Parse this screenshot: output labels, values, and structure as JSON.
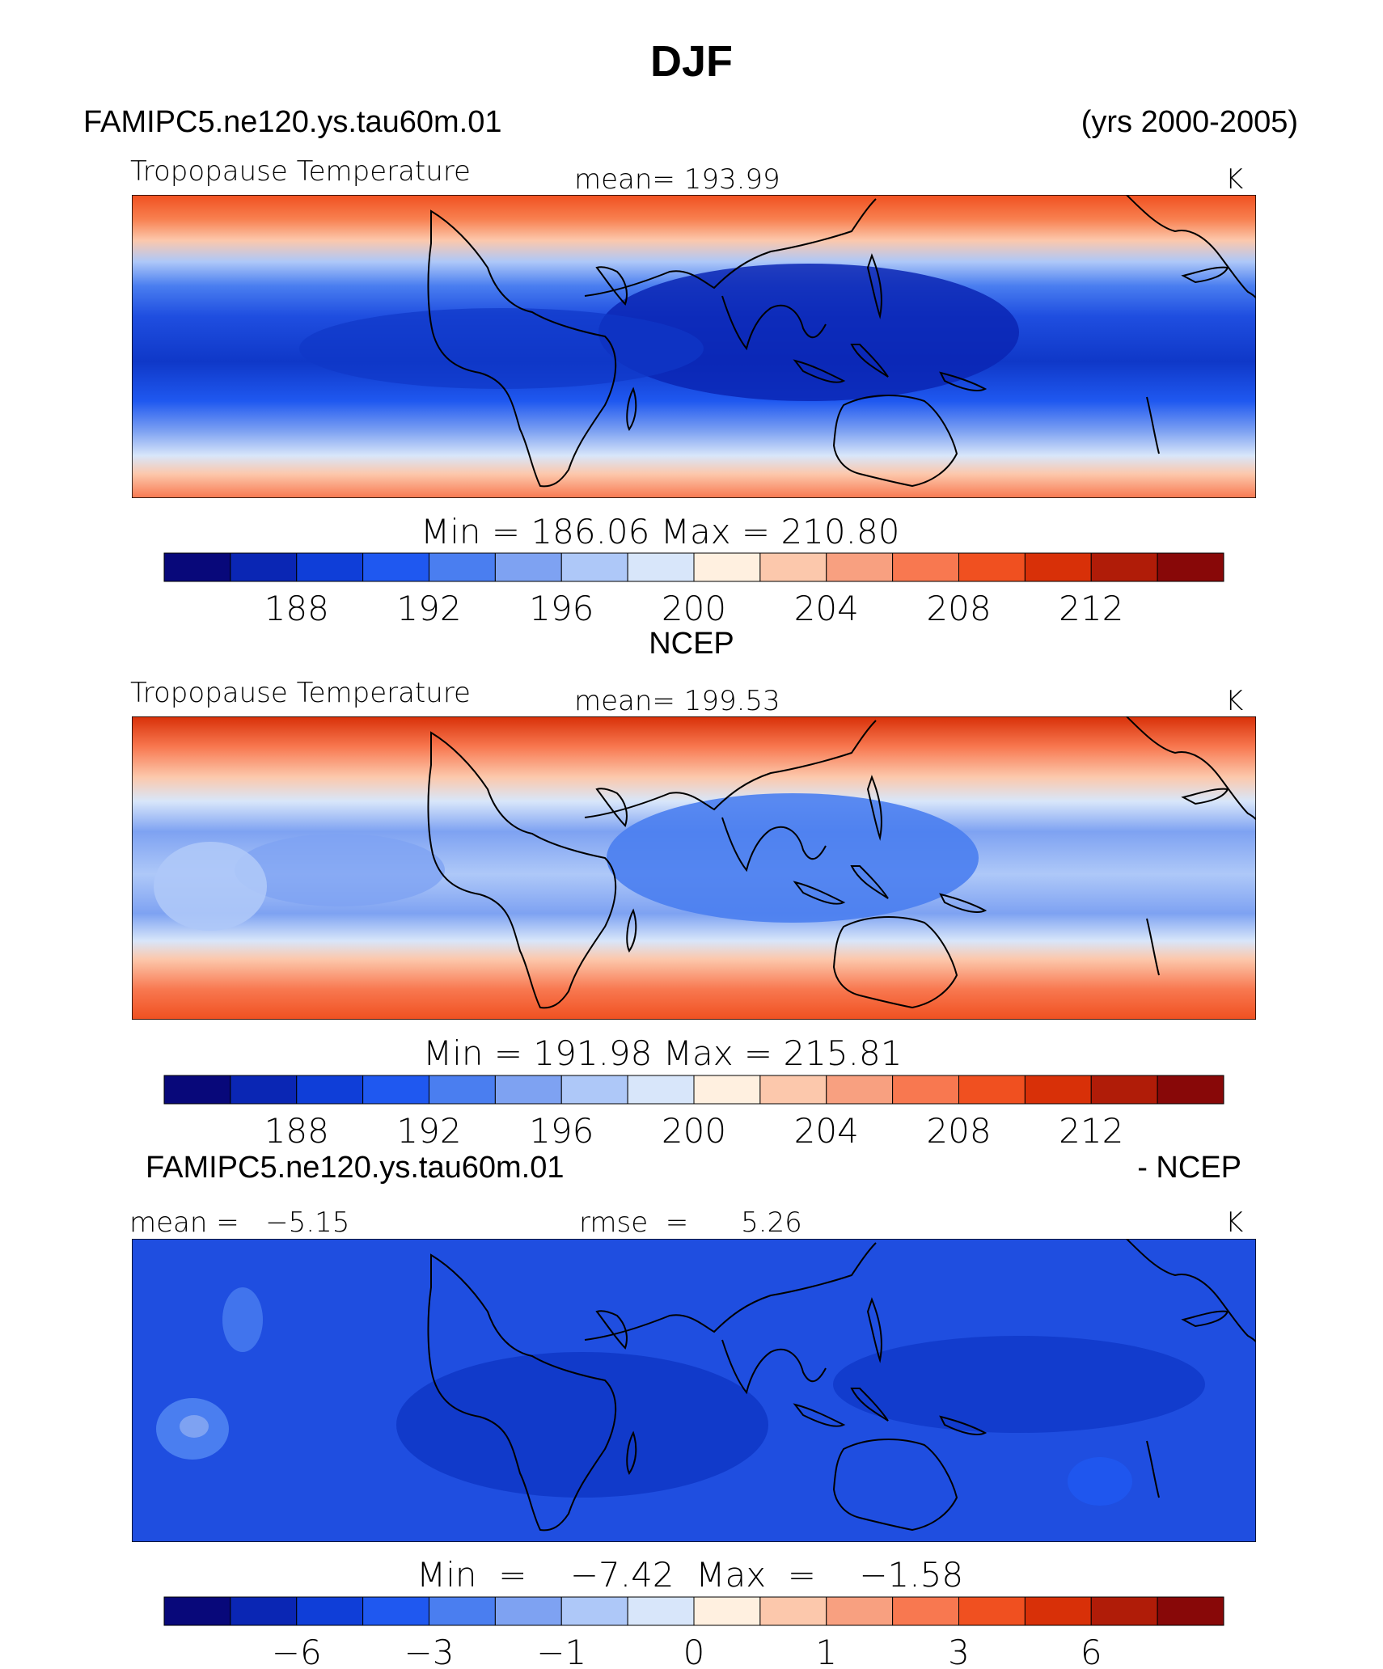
{
  "chart_data": {
    "type": "heatmap",
    "title": "DJF",
    "panels": [
      {
        "case_label": "FAMIPC5.ne120.ys.tau60m.01",
        "period_label": "(yrs 2000-2005)",
        "variable": "Tropopause Temperature",
        "mean_label": "mean=  193.99",
        "units": "K",
        "min_max_label": "Min  =  186.06  Max  =  210.80",
        "levels": [
          "188",
          "192",
          "196",
          "200",
          "204",
          "208",
          "212"
        ],
        "min": 186.06,
        "max": 210.8,
        "mean": 193.99
      },
      {
        "case_label": "NCEP",
        "variable": "Tropopause Temperature",
        "mean_label": "mean=  199.53",
        "units": "K",
        "min_max_label": "Min  =  191.98  Max  =  215.81",
        "levels": [
          "188",
          "192",
          "196",
          "200",
          "204",
          "208",
          "212"
        ],
        "min": 191.98,
        "max": 215.81,
        "mean": 199.53
      },
      {
        "case_label": "FAMIPC5.ne120.ys.tau60m.01",
        "diff_label": "- NCEP",
        "mean_label": "mean =   −5.15",
        "rmse_label": "rmse  =      5.26",
        "units": "K",
        "min_max_label": "Min  =    −7.42  Max  =    −1.58",
        "levels": [
          "−6",
          "−3",
          "−1",
          "0",
          "1",
          "3",
          "6"
        ],
        "min": -7.42,
        "max": -1.58,
        "mean": -5.15,
        "rmse": 5.26
      }
    ],
    "colorbar_colors": [
      "#08087a",
      "#0a26b4",
      "#0f3ed8",
      "#1f58f0",
      "#4a7ef0",
      "#7ea2f2",
      "#aec8f8",
      "#d8e6fa",
      "#fff0e0",
      "#fcc8ac",
      "#f8a080",
      "#f87850",
      "#f05020",
      "#d83008",
      "#b01c08",
      "#880808"
    ]
  }
}
